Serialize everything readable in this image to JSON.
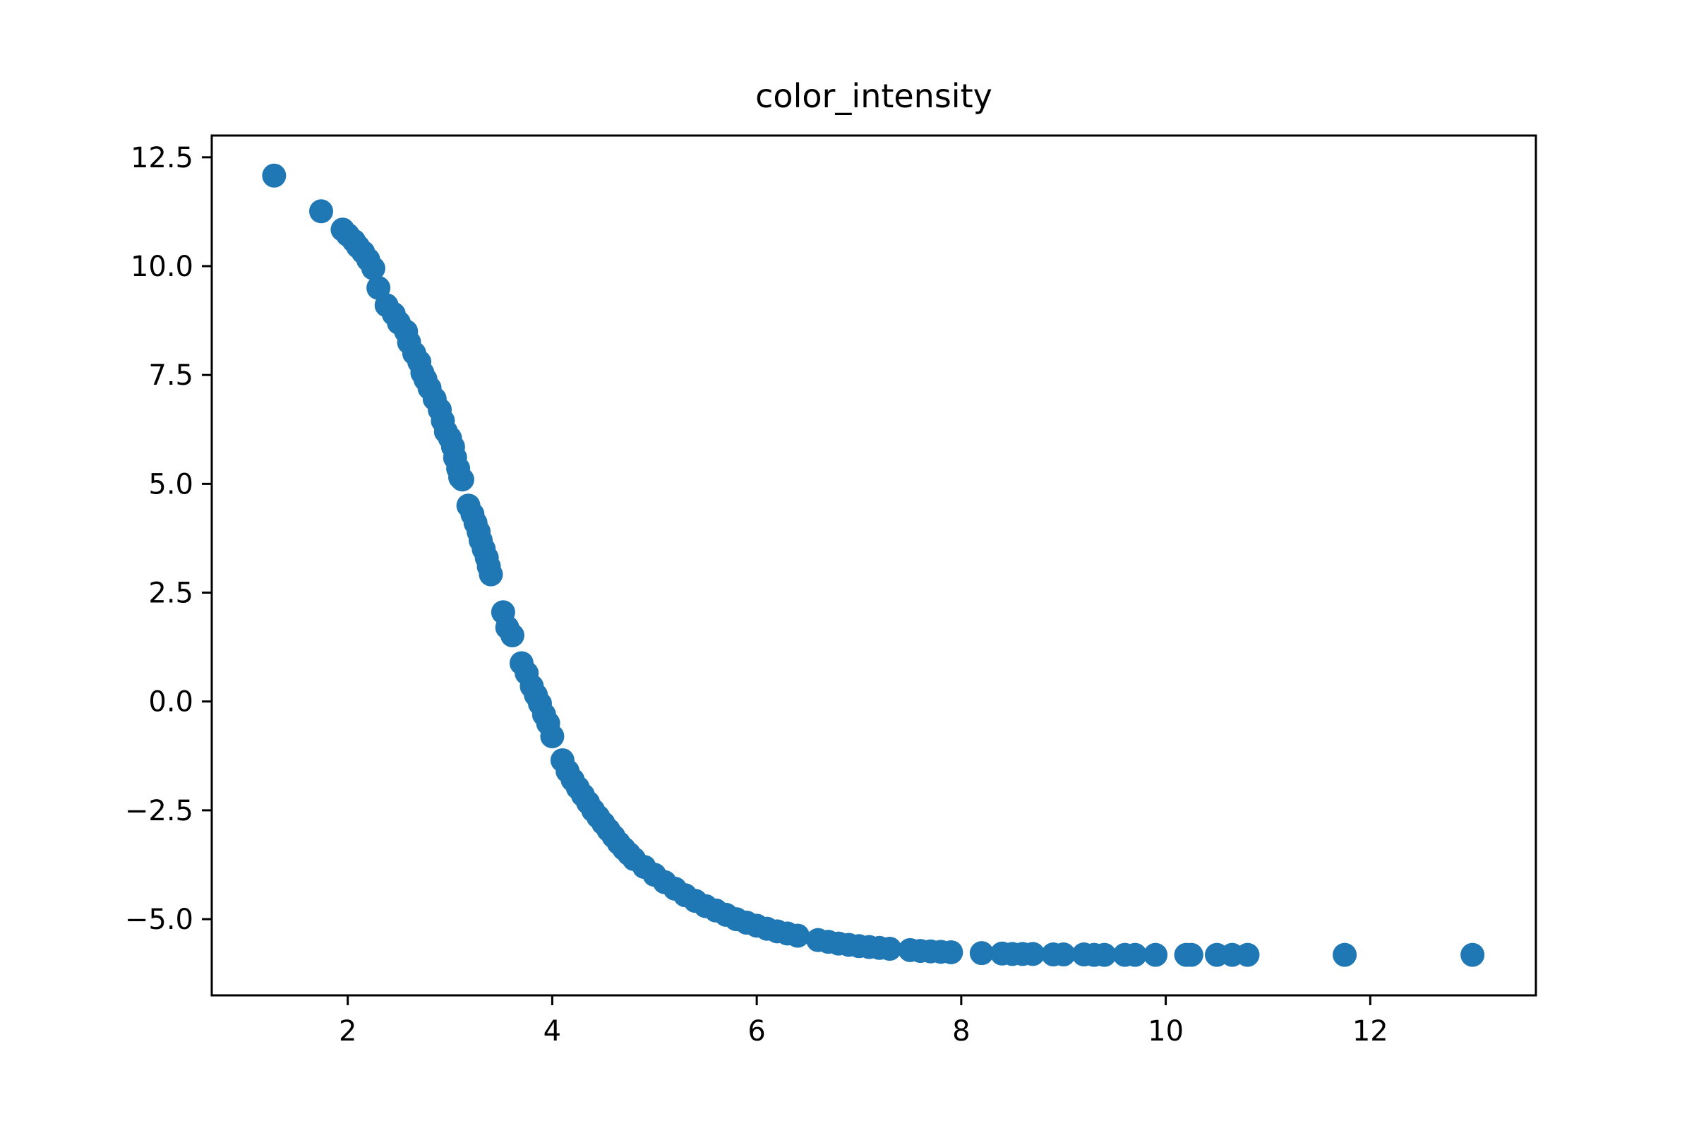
{
  "chart_data": {
    "type": "scatter",
    "title": "color_intensity",
    "xlabel": "",
    "ylabel": "",
    "xlim": [
      0.67,
      13.62
    ],
    "ylim": [
      -6.75,
      13.0
    ],
    "grid": false,
    "marker_color": "#1f77b4",
    "x_ticks": [
      {
        "value": 2,
        "label": "2"
      },
      {
        "value": 4,
        "label": "4"
      },
      {
        "value": 6,
        "label": "6"
      },
      {
        "value": 8,
        "label": "8"
      },
      {
        "value": 10,
        "label": "10"
      },
      {
        "value": 12,
        "label": "12"
      }
    ],
    "y_ticks": [
      {
        "value": 12.5,
        "label": "12.5"
      },
      {
        "value": 10.0,
        "label": "10.0"
      },
      {
        "value": 7.5,
        "label": "7.5"
      },
      {
        "value": 5.0,
        "label": "5.0"
      },
      {
        "value": 2.5,
        "label": "2.5"
      },
      {
        "value": 0.0,
        "label": "0.0"
      },
      {
        "value": -2.5,
        "label": "−2.5"
      },
      {
        "value": -5.0,
        "label": "−5.0"
      }
    ],
    "series": [
      {
        "points": [
          [
            1.28,
            12.08
          ],
          [
            1.74,
            11.26
          ],
          [
            1.95,
            10.84
          ],
          [
            2.0,
            10.72
          ],
          [
            2.06,
            10.58
          ],
          [
            2.1,
            10.45
          ],
          [
            2.15,
            10.32
          ],
          [
            2.2,
            10.15
          ],
          [
            2.25,
            9.95
          ],
          [
            2.3,
            9.5
          ],
          [
            2.38,
            9.1
          ],
          [
            2.45,
            8.9
          ],
          [
            2.5,
            8.7
          ],
          [
            2.57,
            8.5
          ],
          [
            2.6,
            8.25
          ],
          [
            2.65,
            8.0
          ],
          [
            2.7,
            7.8
          ],
          [
            2.73,
            7.55
          ],
          [
            2.76,
            7.4
          ],
          [
            2.8,
            7.2
          ],
          [
            2.85,
            6.95
          ],
          [
            2.9,
            6.7
          ],
          [
            2.93,
            6.45
          ],
          [
            2.96,
            6.2
          ],
          [
            3.0,
            6.05
          ],
          [
            3.03,
            5.85
          ],
          [
            3.05,
            5.6
          ],
          [
            3.08,
            5.35
          ],
          [
            3.1,
            5.15
          ],
          [
            3.12,
            5.1
          ],
          [
            3.18,
            4.5
          ],
          [
            3.22,
            4.3
          ],
          [
            3.25,
            4.1
          ],
          [
            3.28,
            3.9
          ],
          [
            3.3,
            3.7
          ],
          [
            3.33,
            3.5
          ],
          [
            3.36,
            3.3
          ],
          [
            3.38,
            3.1
          ],
          [
            3.4,
            2.92
          ],
          [
            3.52,
            2.05
          ],
          [
            3.56,
            1.7
          ],
          [
            3.61,
            1.52
          ],
          [
            3.7,
            0.88
          ],
          [
            3.75,
            0.65
          ],
          [
            3.8,
            0.35
          ],
          [
            3.84,
            0.15
          ],
          [
            3.88,
            -0.05
          ],
          [
            3.92,
            -0.3
          ],
          [
            3.96,
            -0.5
          ],
          [
            4.0,
            -0.8
          ],
          [
            4.1,
            -1.35
          ],
          [
            4.15,
            -1.6
          ],
          [
            4.2,
            -1.8
          ],
          [
            4.25,
            -1.98
          ],
          [
            4.3,
            -2.15
          ],
          [
            4.35,
            -2.32
          ],
          [
            4.4,
            -2.5
          ],
          [
            4.45,
            -2.65
          ],
          [
            4.5,
            -2.8
          ],
          [
            4.55,
            -2.95
          ],
          [
            4.6,
            -3.1
          ],
          [
            4.65,
            -3.25
          ],
          [
            4.7,
            -3.38
          ],
          [
            4.75,
            -3.5
          ],
          [
            4.8,
            -3.62
          ],
          [
            4.9,
            -3.8
          ],
          [
            5.0,
            -3.98
          ],
          [
            5.1,
            -4.15
          ],
          [
            5.2,
            -4.3
          ],
          [
            5.3,
            -4.45
          ],
          [
            5.4,
            -4.58
          ],
          [
            5.5,
            -4.7
          ],
          [
            5.6,
            -4.8
          ],
          [
            5.7,
            -4.9
          ],
          [
            5.8,
            -5.0
          ],
          [
            5.9,
            -5.08
          ],
          [
            6.0,
            -5.15
          ],
          [
            6.1,
            -5.22
          ],
          [
            6.2,
            -5.28
          ],
          [
            6.3,
            -5.33
          ],
          [
            6.4,
            -5.38
          ],
          [
            6.6,
            -5.48
          ],
          [
            6.7,
            -5.52
          ],
          [
            6.8,
            -5.56
          ],
          [
            6.9,
            -5.59
          ],
          [
            7.0,
            -5.62
          ],
          [
            7.1,
            -5.64
          ],
          [
            7.2,
            -5.66
          ],
          [
            7.3,
            -5.68
          ],
          [
            7.5,
            -5.71
          ],
          [
            7.6,
            -5.73
          ],
          [
            7.7,
            -5.74
          ],
          [
            7.8,
            -5.75
          ],
          [
            7.9,
            -5.76
          ],
          [
            8.2,
            -5.78
          ],
          [
            8.4,
            -5.79
          ],
          [
            8.5,
            -5.8
          ],
          [
            8.6,
            -5.8
          ],
          [
            8.7,
            -5.8
          ],
          [
            8.9,
            -5.81
          ],
          [
            9.0,
            -5.81
          ],
          [
            9.2,
            -5.81
          ],
          [
            9.3,
            -5.82
          ],
          [
            9.4,
            -5.82
          ],
          [
            9.6,
            -5.82
          ],
          [
            9.7,
            -5.82
          ],
          [
            9.9,
            -5.82
          ],
          [
            10.2,
            -5.82
          ],
          [
            10.25,
            -5.82
          ],
          [
            10.5,
            -5.82
          ],
          [
            10.65,
            -5.82
          ],
          [
            10.8,
            -5.82
          ],
          [
            11.75,
            -5.82
          ],
          [
            13.0,
            -5.82
          ]
        ]
      }
    ]
  }
}
